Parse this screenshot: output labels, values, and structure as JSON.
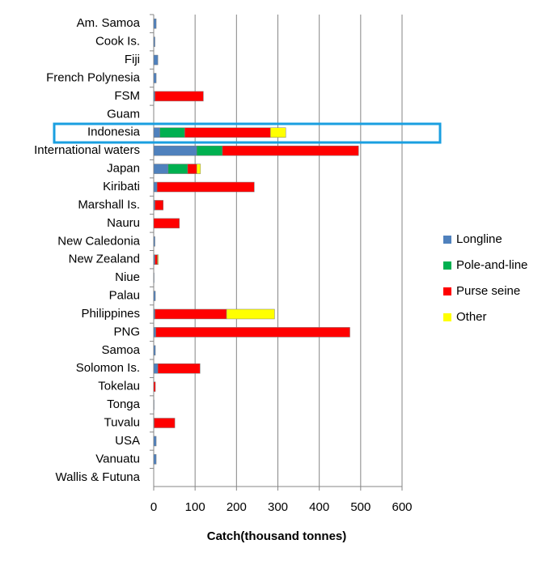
{
  "chart_data": {
    "type": "stacked-horizontal-bar",
    "x_label": "Catch(thousand tonnes)",
    "categories": [
      "Am. Samoa",
      "Cook Is.",
      "Fiji",
      "French Polynesia",
      "FSM",
      "Guam",
      "Indonesia",
      "International waters",
      "Japan",
      "Kiribati",
      "Marshall Is.",
      "Nauru",
      "New Caledonia",
      "New Zealand",
      "Niue",
      "Palau",
      "Philippines",
      "PNG",
      "Samoa",
      "Solomon Is.",
      "Tokelau",
      "Tonga",
      "Tuvalu",
      "USA",
      "Vanuatu",
      "Wallis & Futuna"
    ],
    "series": [
      {
        "name": "Longline",
        "color": "#4f81bd",
        "values": [
          6,
          3,
          10,
          6,
          3,
          0,
          15,
          104,
          35,
          8,
          3,
          0,
          3,
          3,
          1,
          4,
          3,
          5,
          4,
          10,
          0,
          1,
          1,
          6,
          6,
          0
        ]
      },
      {
        "name": "Pole-and-line",
        "color": "#00b050",
        "values": [
          0,
          0,
          0,
          0,
          0,
          0,
          60,
          62,
          47,
          0,
          0,
          0,
          0,
          0,
          0,
          0,
          0,
          0,
          0,
          0,
          0,
          0,
          0,
          0,
          0,
          0
        ]
      },
      {
        "name": "Purse seine",
        "color": "#ff0000",
        "values": [
          0,
          0,
          0,
          0,
          117,
          0,
          207,
          329,
          22,
          235,
          20,
          62,
          0,
          6,
          0,
          0,
          173,
          469,
          0,
          102,
          4,
          0,
          50,
          0,
          0,
          0
        ]
      },
      {
        "name": "Other",
        "color": "#ffff00",
        "values": [
          0,
          0,
          0,
          0,
          0,
          0,
          37,
          0,
          9,
          0,
          0,
          0,
          0,
          2,
          0,
          0,
          116,
          0,
          0,
          0,
          0,
          0,
          0,
          0,
          0,
          0
        ]
      }
    ],
    "xlim": [
      0,
      600
    ],
    "xticks": [
      0,
      100,
      200,
      300,
      400,
      500,
      600
    ],
    "grid": true,
    "legend": "right"
  }
}
